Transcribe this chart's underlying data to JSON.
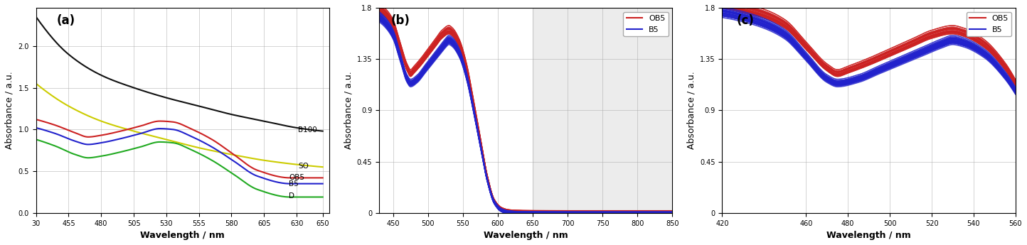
{
  "panel_a": {
    "xlabel": "Wavelength / nm",
    "ylabel": "Absorbance / a.u.",
    "label": "(a)",
    "xlim": [
      430,
      651
    ],
    "xtick_vals": [
      455,
      480,
      505,
      530,
      555,
      580,
      605,
      630,
      650
    ],
    "xtick_first": "30",
    "curves": {
      "B100": {
        "color": "#111111"
      },
      "SO": {
        "color": "#cccc00"
      },
      "OB5": {
        "color": "#cc2222"
      },
      "B5": {
        "color": "#2222cc"
      },
      "D": {
        "color": "#22aa22"
      }
    }
  },
  "panel_b": {
    "xlabel": "Wavelength / nm",
    "ylabel": "Absorbance / a.u.",
    "label": "(b)",
    "xlim": [
      430,
      850
    ],
    "ylim": [
      0,
      1.8
    ],
    "xticks": [
      450,
      500,
      550,
      600,
      650,
      700,
      750,
      800,
      850
    ],
    "yticks": [
      0,
      0.45,
      0.9,
      1.35,
      1.8
    ],
    "shaded_region": [
      650,
      850
    ],
    "n_ob5": 45,
    "n_b5": 45
  },
  "panel_c": {
    "xlabel": "Wavelength / nm",
    "ylabel": "Absorbance / a.u.",
    "label": "(c)",
    "xlim": [
      420,
      560
    ],
    "ylim": [
      0,
      1.8
    ],
    "xticks": [
      420,
      460,
      480,
      500,
      520,
      540,
      560
    ],
    "yticks": [
      0,
      0.45,
      0.9,
      1.35,
      1.8
    ],
    "n_ob5": 45,
    "n_b5": 45
  },
  "ob5_color": "#cc2222",
  "b5_color": "#2222cc",
  "grid_color": "#aaaaaa",
  "bg_color": "#ffffff"
}
